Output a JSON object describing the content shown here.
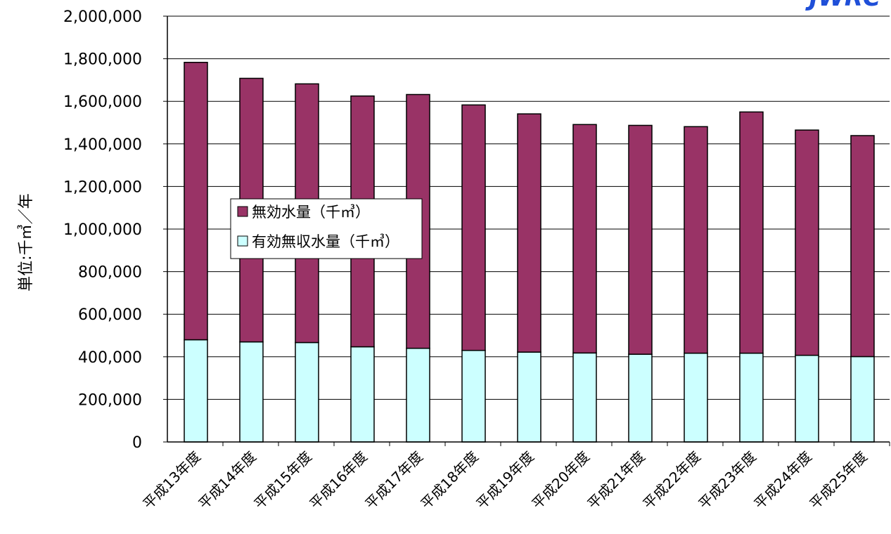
{
  "watermark": "JWRC",
  "chart_data": {
    "type": "bar",
    "stacked": true,
    "categories": [
      "平成13年度",
      "平成14年度",
      "平成15年度",
      "平成16年度",
      "平成17年度",
      "平成18年度",
      "平成19年度",
      "平成20年度",
      "平成21年度",
      "平成22年度",
      "平成23年度",
      "平成24年度",
      "平成25年度"
    ],
    "series": [
      {
        "name": "有効無収水量（千㎥）",
        "color": "#ccffff",
        "values": [
          480000,
          470000,
          467000,
          447000,
          440000,
          430000,
          422000,
          418000,
          412000,
          417000,
          417000,
          407000,
          401000
        ]
      },
      {
        "name": "無効水量（千㎥）",
        "color": "#993366",
        "values": [
          1303000,
          1238000,
          1215000,
          1178000,
          1192000,
          1153000,
          1119000,
          1073000,
          1075000,
          1064000,
          1133000,
          1058000,
          1038000
        ]
      }
    ],
    "ylabel": "単位:千㎥／年",
    "xlabel": "",
    "ylim": [
      0,
      2000000
    ],
    "yticks": [
      0,
      200000,
      400000,
      600000,
      800000,
      1000000,
      1200000,
      1400000,
      1600000,
      1800000,
      2000000
    ],
    "ytick_labels": [
      "0",
      "200,000",
      "400,000",
      "600,000",
      "800,000",
      "1,000,000",
      "1,200,000",
      "1,400,000",
      "1,600,000",
      "1,800,000",
      "2,000,000"
    ],
    "grid": true,
    "legend_position": "center-left",
    "legend_entries": [
      "無効水量（千㎥）",
      "有効無収水量（千㎥）"
    ]
  }
}
